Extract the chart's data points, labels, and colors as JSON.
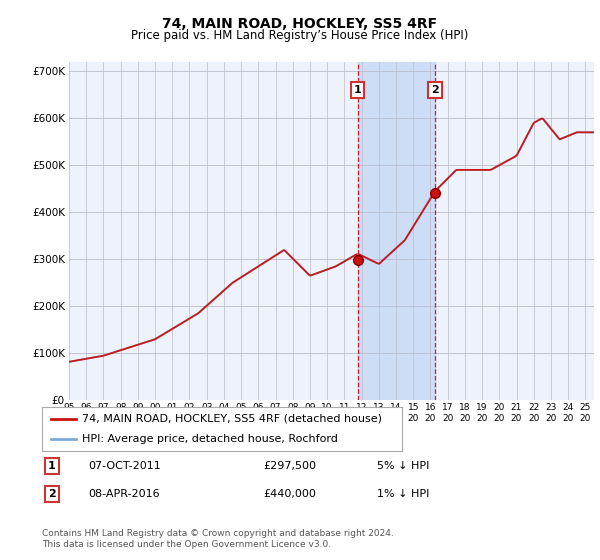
{
  "title": "74, MAIN ROAD, HOCKLEY, SS5 4RF",
  "subtitle": "Price paid vs. HM Land Registry’s House Price Index (HPI)",
  "ylim": [
    0,
    720000
  ],
  "yticks": [
    0,
    100000,
    200000,
    300000,
    400000,
    500000,
    600000,
    700000
  ],
  "ytick_labels": [
    "£0",
    "£100K",
    "£200K",
    "£300K",
    "£400K",
    "£500K",
    "£600K",
    "£700K"
  ],
  "hpi_color": "#7aaadd",
  "price_color": "#cc1111",
  "background_color": "#ffffff",
  "plot_bg_color": "#eef2fa",
  "grid_color": "#bbbbcc",
  "shade_color": "#ccddf5",
  "sale1_date": 2011.77,
  "sale1_price": 297500,
  "sale2_date": 2016.27,
  "sale2_price": 440000,
  "legend_line1": "74, MAIN ROAD, HOCKLEY, SS5 4RF (detached house)",
  "legend_line2": "HPI: Average price, detached house, Rochford",
  "annotation1_label": "1",
  "annotation1_date": "07-OCT-2011",
  "annotation1_price": "£297,500",
  "annotation1_pct": "5% ↓ HPI",
  "annotation2_label": "2",
  "annotation2_date": "08-APR-2016",
  "annotation2_price": "£440,000",
  "annotation2_pct": "1% ↓ HPI",
  "footer": "Contains HM Land Registry data © Crown copyright and database right 2024.\nThis data is licensed under the Open Government Licence v3.0.",
  "title_fontsize": 10,
  "subtitle_fontsize": 8.5,
  "tick_fontsize": 7.5,
  "legend_fontsize": 8,
  "annotation_fontsize": 8
}
